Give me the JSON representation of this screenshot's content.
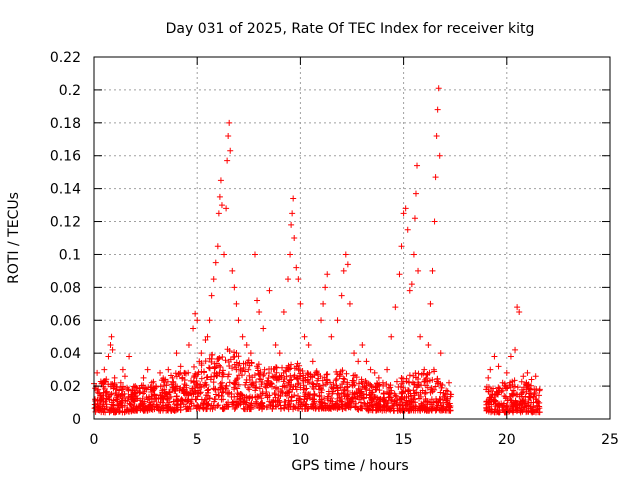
{
  "chart_data": {
    "type": "scatter",
    "title": "Day 031 of 2025, Rate Of TEC Index for receiver kitg",
    "xlabel": "GPS time / hours",
    "ylabel": "ROTI / TECUs",
    "xlim": [
      0,
      25
    ],
    "ylim": [
      0,
      0.22
    ],
    "xticks": [
      0,
      5,
      10,
      15,
      20,
      25
    ],
    "yticks": [
      0,
      0.02,
      0.04,
      0.06,
      0.08,
      0.1,
      0.12,
      0.14,
      0.16,
      0.18,
      0.2,
      0.22
    ],
    "grid": true,
    "marker": "+",
    "color": "#ff0000",
    "points": [
      [
        0.05,
        0.012
      ],
      [
        0.1,
        0.02
      ],
      [
        0.15,
        0.028
      ],
      [
        0.2,
        0.018
      ],
      [
        0.3,
        0.014
      ],
      [
        0.4,
        0.022
      ],
      [
        0.5,
        0.03
      ],
      [
        0.6,
        0.016
      ],
      [
        0.7,
        0.038
      ],
      [
        0.8,
        0.045
      ],
      [
        0.85,
        0.05
      ],
      [
        0.9,
        0.042
      ],
      [
        1.0,
        0.025
      ],
      [
        1.1,
        0.018
      ],
      [
        1.2,
        0.015
      ],
      [
        1.3,
        0.022
      ],
      [
        1.4,
        0.03
      ],
      [
        1.5,
        0.026
      ],
      [
        1.6,
        0.019
      ],
      [
        1.7,
        0.038
      ],
      [
        1.8,
        0.014
      ],
      [
        1.9,
        0.012
      ],
      [
        2.0,
        0.02
      ],
      [
        2.2,
        0.016
      ],
      [
        2.4,
        0.025
      ],
      [
        2.6,
        0.03
      ],
      [
        2.8,
        0.022
      ],
      [
        3.0,
        0.02
      ],
      [
        3.2,
        0.028
      ],
      [
        3.4,
        0.018
      ],
      [
        3.6,
        0.03
      ],
      [
        3.8,
        0.025
      ],
      [
        4.0,
        0.04
      ],
      [
        4.2,
        0.032
      ],
      [
        4.4,
        0.028
      ],
      [
        4.6,
        0.045
      ],
      [
        4.8,
        0.055
      ],
      [
        4.9,
        0.064
      ],
      [
        5.0,
        0.06
      ],
      [
        5.1,
        0.035
      ],
      [
        5.2,
        0.04
      ],
      [
        5.4,
        0.048
      ],
      [
        5.5,
        0.05
      ],
      [
        5.6,
        0.06
      ],
      [
        5.7,
        0.075
      ],
      [
        5.8,
        0.085
      ],
      [
        5.9,
        0.095
      ],
      [
        6.0,
        0.105
      ],
      [
        6.05,
        0.125
      ],
      [
        6.1,
        0.135
      ],
      [
        6.15,
        0.145
      ],
      [
        6.2,
        0.13
      ],
      [
        6.3,
        0.1
      ],
      [
        6.4,
        0.128
      ],
      [
        6.45,
        0.157
      ],
      [
        6.5,
        0.172
      ],
      [
        6.55,
        0.18
      ],
      [
        6.6,
        0.163
      ],
      [
        6.7,
        0.09
      ],
      [
        6.8,
        0.08
      ],
      [
        6.9,
        0.07
      ],
      [
        7.0,
        0.06
      ],
      [
        7.2,
        0.05
      ],
      [
        7.4,
        0.045
      ],
      [
        7.6,
        0.04
      ],
      [
        7.8,
        0.1
      ],
      [
        7.9,
        0.072
      ],
      [
        8.0,
        0.065
      ],
      [
        8.2,
        0.055
      ],
      [
        8.5,
        0.078
      ],
      [
        8.8,
        0.045
      ],
      [
        9.0,
        0.04
      ],
      [
        9.2,
        0.065
      ],
      [
        9.4,
        0.085
      ],
      [
        9.5,
        0.1
      ],
      [
        9.55,
        0.118
      ],
      [
        9.6,
        0.125
      ],
      [
        9.65,
        0.134
      ],
      [
        9.7,
        0.11
      ],
      [
        9.8,
        0.092
      ],
      [
        9.9,
        0.085
      ],
      [
        10.0,
        0.07
      ],
      [
        10.2,
        0.05
      ],
      [
        10.4,
        0.045
      ],
      [
        10.6,
        0.035
      ],
      [
        10.8,
        0.028
      ],
      [
        11.0,
        0.06
      ],
      [
        11.1,
        0.07
      ],
      [
        11.2,
        0.08
      ],
      [
        11.3,
        0.088
      ],
      [
        11.5,
        0.05
      ],
      [
        11.8,
        0.06
      ],
      [
        12.0,
        0.075
      ],
      [
        12.1,
        0.09
      ],
      [
        12.2,
        0.1
      ],
      [
        12.3,
        0.094
      ],
      [
        12.4,
        0.07
      ],
      [
        12.6,
        0.04
      ],
      [
        12.8,
        0.035
      ],
      [
        13.0,
        0.045
      ],
      [
        13.2,
        0.035
      ],
      [
        13.4,
        0.03
      ],
      [
        13.6,
        0.028
      ],
      [
        13.8,
        0.025
      ],
      [
        14.0,
        0.022
      ],
      [
        14.2,
        0.03
      ],
      [
        14.4,
        0.05
      ],
      [
        14.6,
        0.068
      ],
      [
        14.8,
        0.088
      ],
      [
        14.9,
        0.105
      ],
      [
        15.0,
        0.125
      ],
      [
        15.1,
        0.128
      ],
      [
        15.2,
        0.115
      ],
      [
        15.3,
        0.078
      ],
      [
        15.4,
        0.082
      ],
      [
        15.5,
        0.1
      ],
      [
        15.55,
        0.122
      ],
      [
        15.6,
        0.137
      ],
      [
        15.65,
        0.154
      ],
      [
        15.7,
        0.09
      ],
      [
        15.8,
        0.05
      ],
      [
        16.0,
        0.03
      ],
      [
        16.2,
        0.045
      ],
      [
        16.3,
        0.07
      ],
      [
        16.4,
        0.09
      ],
      [
        16.5,
        0.12
      ],
      [
        16.55,
        0.147
      ],
      [
        16.6,
        0.172
      ],
      [
        16.65,
        0.188
      ],
      [
        16.7,
        0.201
      ],
      [
        16.75,
        0.16
      ],
      [
        16.8,
        0.04
      ],
      [
        17.1,
        0.01
      ],
      [
        17.2,
        0.022
      ],
      [
        17.3,
        0.015
      ],
      [
        19.0,
        0.018
      ],
      [
        19.1,
        0.025
      ],
      [
        19.2,
        0.03
      ],
      [
        19.4,
        0.038
      ],
      [
        19.6,
        0.032
      ],
      [
        19.8,
        0.022
      ],
      [
        20.0,
        0.028
      ],
      [
        20.2,
        0.038
      ],
      [
        20.4,
        0.042
      ],
      [
        20.5,
        0.068
      ],
      [
        20.6,
        0.065
      ],
      [
        20.8,
        0.026
      ],
      [
        21.0,
        0.028
      ],
      [
        21.2,
        0.024
      ],
      [
        21.4,
        0.026
      ],
      [
        21.6,
        0.018
      ]
    ],
    "bands": [
      [
        0.0,
        0.004,
        0.018
      ],
      [
        0.5,
        0.004,
        0.02
      ],
      [
        1.0,
        0.004,
        0.016
      ],
      [
        1.5,
        0.004,
        0.014
      ],
      [
        2.0,
        0.005,
        0.014
      ],
      [
        2.5,
        0.005,
        0.016
      ],
      [
        3.0,
        0.005,
        0.018
      ],
      [
        3.5,
        0.005,
        0.02
      ],
      [
        4.0,
        0.005,
        0.022
      ],
      [
        4.5,
        0.006,
        0.025
      ],
      [
        5.0,
        0.006,
        0.028
      ],
      [
        5.5,
        0.006,
        0.032
      ],
      [
        6.0,
        0.006,
        0.036
      ],
      [
        6.5,
        0.006,
        0.038
      ],
      [
        7.0,
        0.006,
        0.034
      ],
      [
        7.5,
        0.006,
        0.03
      ],
      [
        8.0,
        0.006,
        0.028
      ],
      [
        8.5,
        0.006,
        0.026
      ],
      [
        9.0,
        0.006,
        0.026
      ],
      [
        9.5,
        0.006,
        0.03
      ],
      [
        10.0,
        0.006,
        0.028
      ],
      [
        10.5,
        0.006,
        0.024
      ],
      [
        11.0,
        0.006,
        0.024
      ],
      [
        11.5,
        0.006,
        0.022
      ],
      [
        12.0,
        0.006,
        0.024
      ],
      [
        12.5,
        0.006,
        0.022
      ],
      [
        13.0,
        0.005,
        0.018
      ],
      [
        13.5,
        0.005,
        0.016
      ],
      [
        14.0,
        0.005,
        0.016
      ],
      [
        14.5,
        0.005,
        0.018
      ],
      [
        15.0,
        0.005,
        0.02
      ],
      [
        15.5,
        0.005,
        0.022
      ],
      [
        16.0,
        0.005,
        0.022
      ],
      [
        16.5,
        0.005,
        0.025
      ],
      [
        16.7,
        0.005,
        0.02
      ],
      [
        17.0,
        0.005,
        0.012
      ],
      [
        17.3,
        0.005,
        0.012
      ],
      [
        19.0,
        0.004,
        0.014
      ],
      [
        19.5,
        0.004,
        0.016
      ],
      [
        20.0,
        0.004,
        0.016
      ],
      [
        20.5,
        0.004,
        0.018
      ],
      [
        21.0,
        0.004,
        0.016
      ],
      [
        21.5,
        0.004,
        0.012
      ],
      [
        21.6,
        0.004,
        0.012
      ]
    ]
  }
}
